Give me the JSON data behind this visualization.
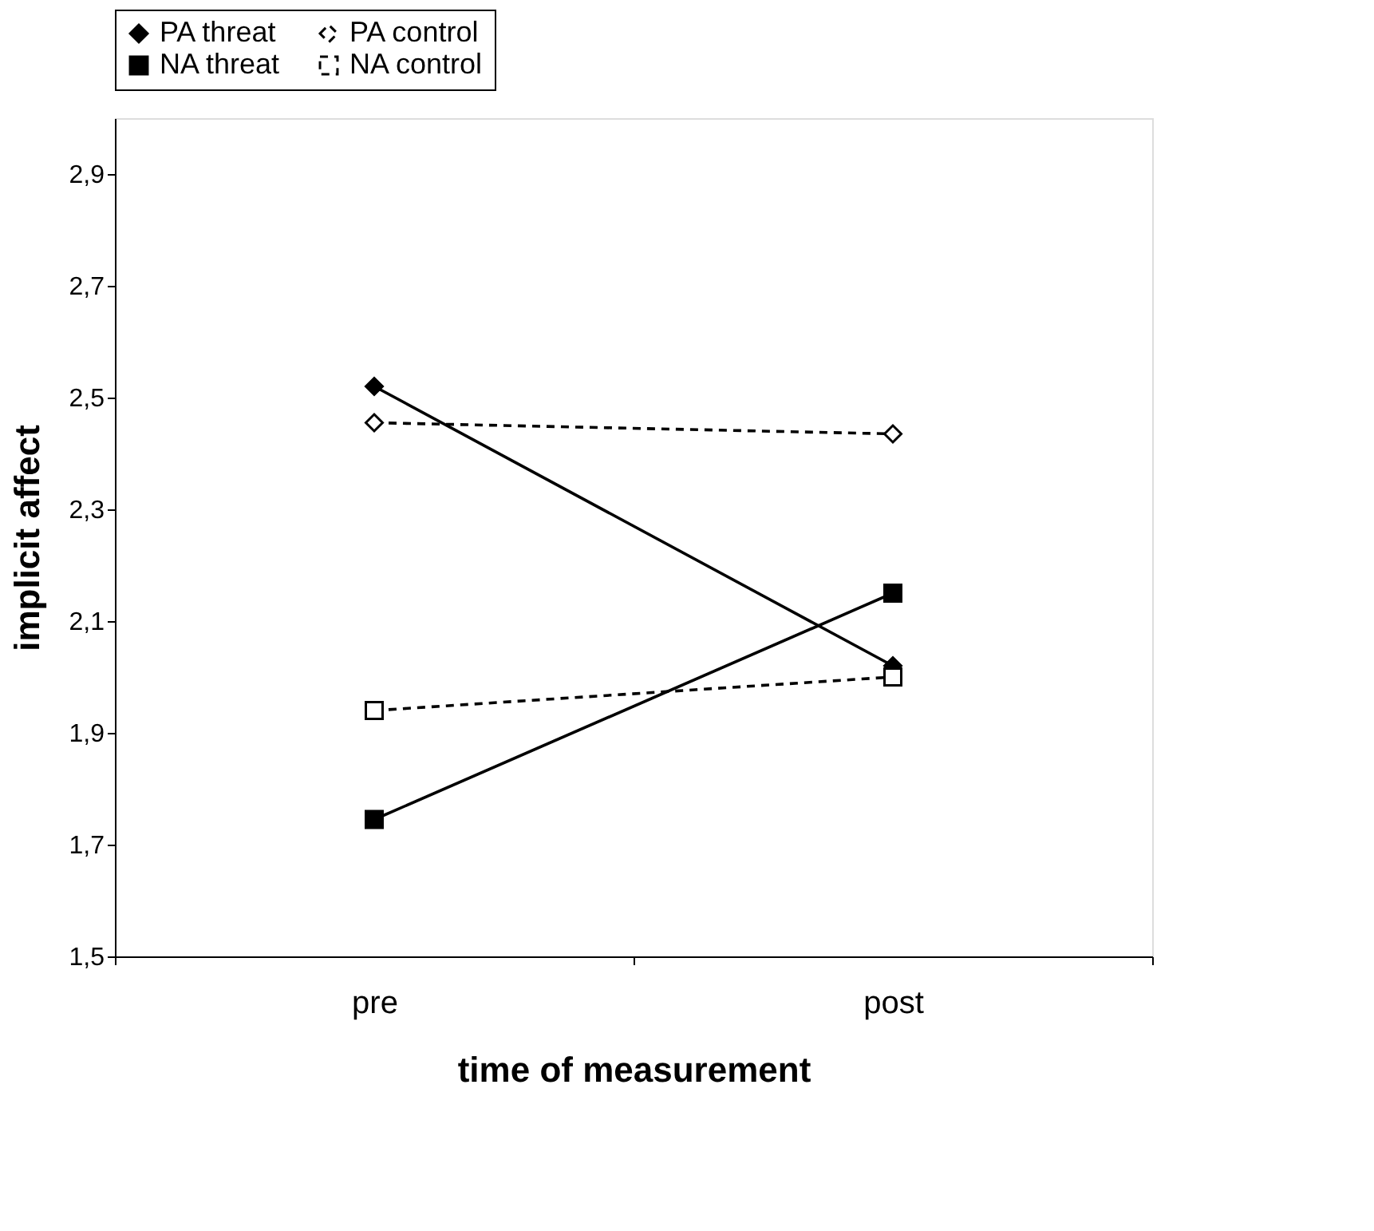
{
  "chart_data": {
    "type": "line",
    "xlabel": "time of measurement",
    "ylabel": "implicit affect",
    "categories": [
      "pre",
      "post"
    ],
    "series": [
      {
        "name": "PA threat",
        "color": "#000000",
        "marker": "diamond",
        "line_style": "solid",
        "values": [
          2.52,
          2.02
        ]
      },
      {
        "name": "PA control",
        "color": "#000000",
        "marker": "diamond",
        "line_style": "dashed",
        "values": [
          2.455,
          2.435
        ]
      },
      {
        "name": "NA threat",
        "color": "#000000",
        "marker": "square",
        "line_style": "solid",
        "values": [
          1.745,
          2.15
        ]
      },
      {
        "name": "NA control",
        "color": "#000000",
        "marker": "square",
        "line_style": "dashed",
        "values": [
          1.94,
          2.0
        ]
      }
    ],
    "ylim": [
      1.5,
      3.0
    ],
    "yticks": [
      {
        "value": 1.5,
        "label": "1,5"
      },
      {
        "value": 1.7,
        "label": "1,7"
      },
      {
        "value": 1.9,
        "label": "1,9"
      },
      {
        "value": 2.1,
        "label": "2,1"
      },
      {
        "value": 2.3,
        "label": "2,3"
      },
      {
        "value": 2.5,
        "label": "2,5"
      },
      {
        "value": 2.7,
        "label": "2,7"
      },
      {
        "value": 2.9,
        "label": "2,9"
      }
    ],
    "legend": "top",
    "grid": false
  }
}
